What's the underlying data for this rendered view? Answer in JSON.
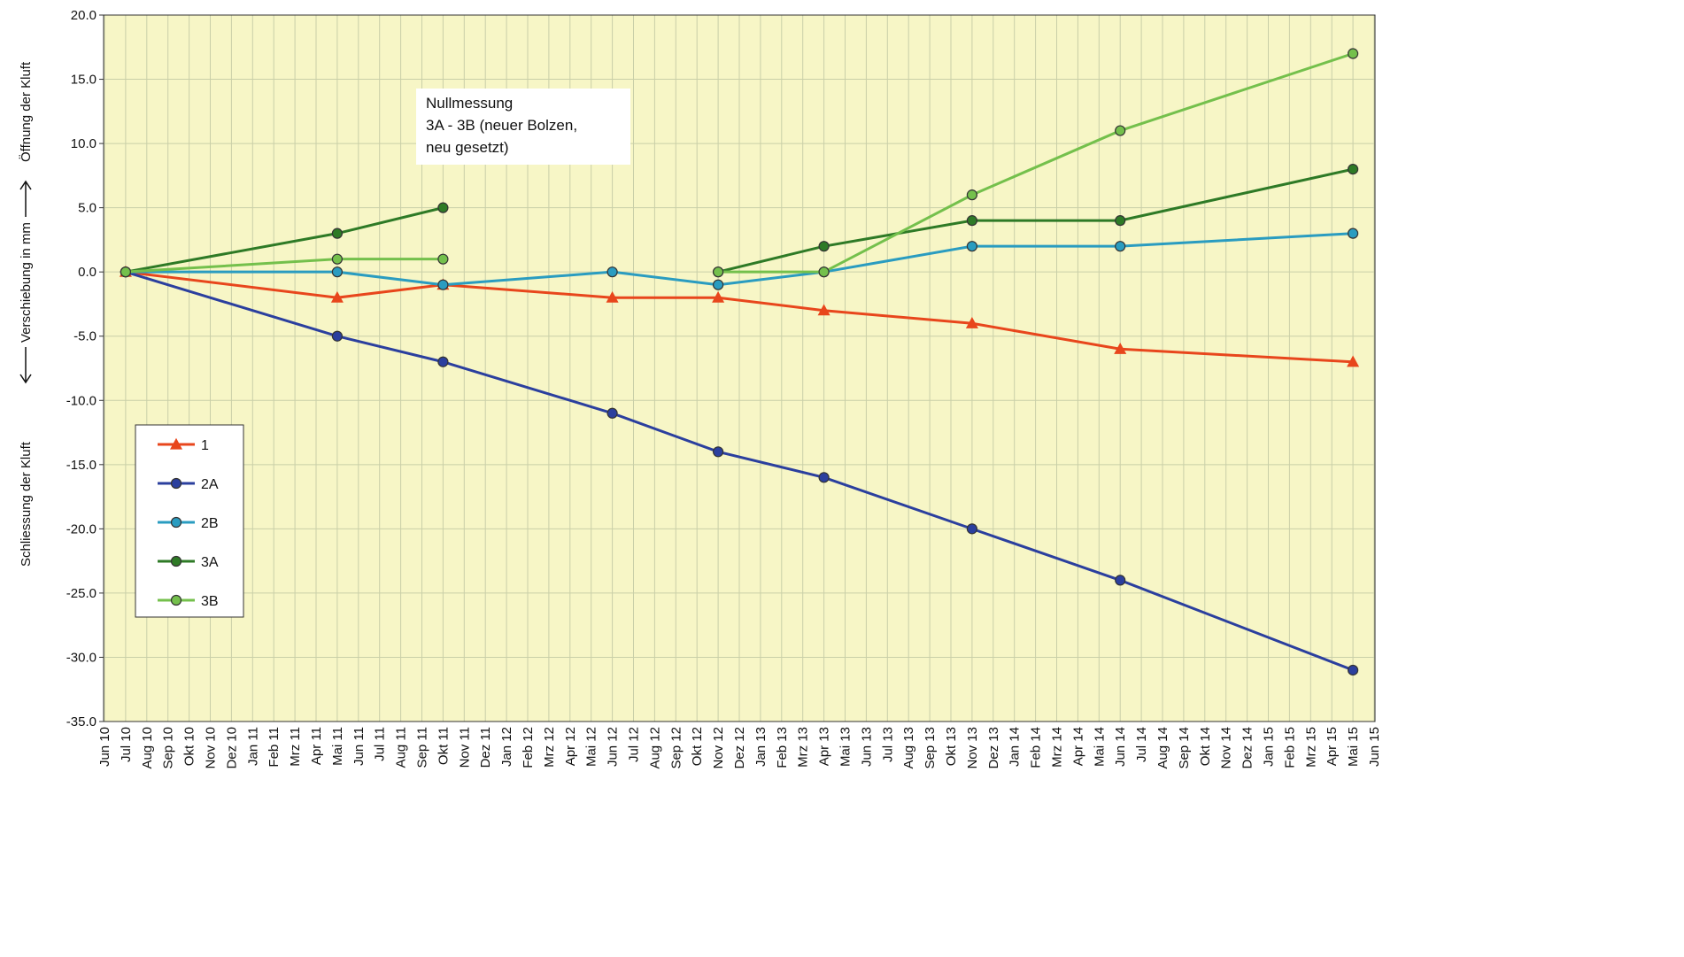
{
  "chart_data": {
    "type": "line",
    "y_label": [
      "Schliessung der Kluft",
      "Verschiebung in mm",
      "Öffnung der Kluft"
    ],
    "annotation": [
      "Nullmessung",
      "3A - 3B (neuer Bolzen,",
      "neu gesetzt)"
    ],
    "categories": [
      "Jun 10",
      "Jul 10",
      "Aug 10",
      "Sep 10",
      "Okt 10",
      "Nov 10",
      "Dez 10",
      "Jan 11",
      "Feb 11",
      "Mrz 11",
      "Apr 11",
      "Mai 11",
      "Jun 11",
      "Jul 11",
      "Aug 11",
      "Sep 11",
      "Okt 11",
      "Nov 11",
      "Dez 11",
      "Jan 12",
      "Feb 12",
      "Mrz 12",
      "Apr 12",
      "Mai 12",
      "Jun 12",
      "Jul 12",
      "Aug 12",
      "Sep 12",
      "Okt 12",
      "Nov 12",
      "Dez 12",
      "Jan 13",
      "Feb 13",
      "Mrz 13",
      "Apr 13",
      "Mai 13",
      "Jun 13",
      "Jul 13",
      "Aug 13",
      "Sep 13",
      "Okt 13",
      "Nov 13",
      "Dez 13",
      "Jan 14",
      "Feb 14",
      "Mrz 14",
      "Apr 14",
      "Mai 14",
      "Jun 14",
      "Jul 14",
      "Aug 14",
      "Sep 14",
      "Okt 14",
      "Nov 14",
      "Dez 14",
      "Jan 15",
      "Feb 15",
      "Mrz 15",
      "Apr 15",
      "Mai 15",
      "Jun 15"
    ],
    "x": [
      "Jul 10",
      "Mai 11",
      "Okt 11",
      "Jun 12",
      "Nov 12",
      "Apr 13",
      "Nov 13",
      "Jun 14",
      "Mai 15"
    ],
    "series": [
      {
        "name": "1",
        "color": "#e8461c",
        "marker": "triangle",
        "values": [
          0,
          -2,
          -1,
          -2,
          -2,
          -3,
          -4,
          -6,
          -7
        ]
      },
      {
        "name": "2A",
        "color": "#2b3f9e",
        "marker": "circle",
        "values": [
          0,
          -5,
          -7,
          -11,
          -14,
          -16,
          -20,
          -24,
          -31
        ]
      },
      {
        "name": "2B",
        "color": "#2a9cc0",
        "marker": "circle",
        "values": [
          0,
          0,
          -1,
          0,
          -1,
          0,
          2,
          2,
          3
        ]
      },
      {
        "name": "3A",
        "color": "#2e7a26",
        "marker": "circle",
        "values": [
          0,
          3,
          5,
          null,
          0,
          2,
          4,
          4,
          8
        ]
      },
      {
        "name": "3B",
        "color": "#74c04c",
        "marker": "circle",
        "values": [
          0,
          1,
          1,
          null,
          0,
          0,
          6,
          11,
          17
        ]
      }
    ],
    "ylim": [
      -35,
      20
    ],
    "yticks": [
      {
        "value": -35,
        "label": "-35.0"
      },
      {
        "value": -30,
        "label": "-30.0"
      },
      {
        "value": -25,
        "label": "-25.0"
      },
      {
        "value": -20,
        "label": "-20.0"
      },
      {
        "value": -15,
        "label": "-15.0"
      },
      {
        "value": -10,
        "label": "-10.0"
      },
      {
        "value": -5,
        "label": "-5.0"
      },
      {
        "value": 0,
        "label": "0.0"
      },
      {
        "value": 5,
        "label": "5.0"
      },
      {
        "value": 10,
        "label": "10.0"
      },
      {
        "value": 15,
        "label": "15.0"
      },
      {
        "value": 20,
        "label": "20.0"
      }
    ],
    "grid": true,
    "background": "#f7f6c6"
  }
}
